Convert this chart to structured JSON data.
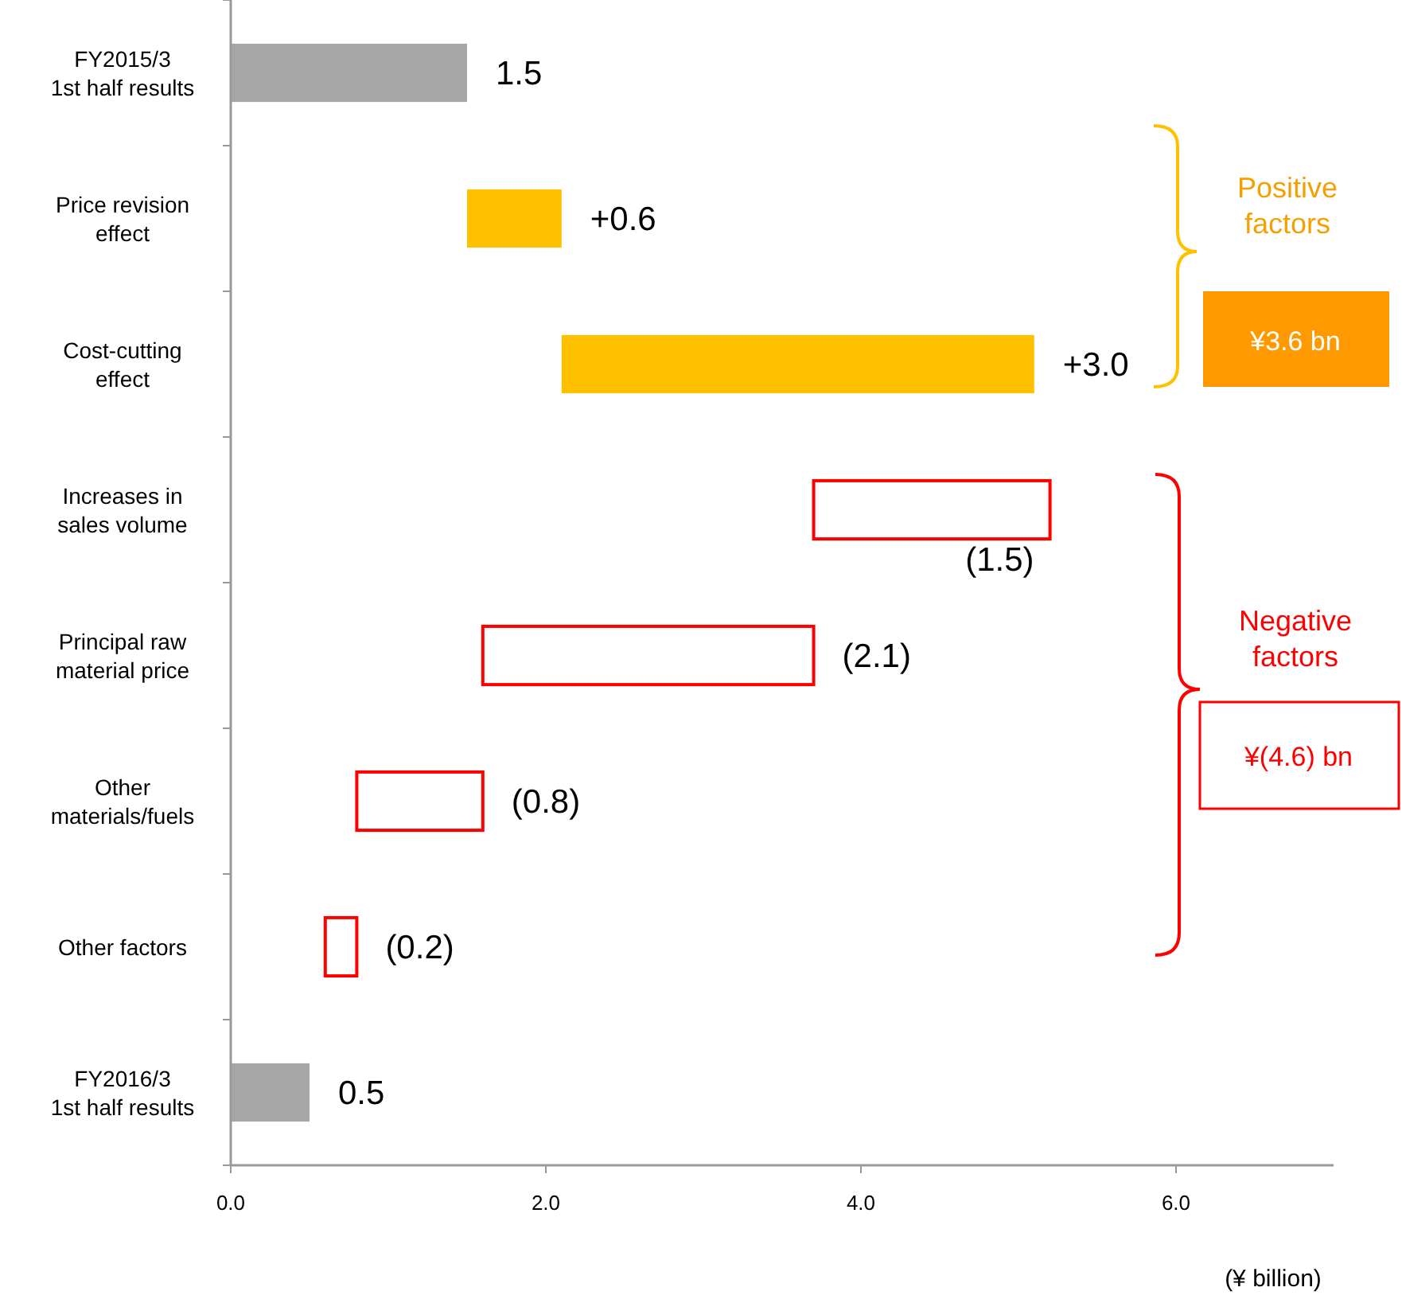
{
  "chart_data": {
    "type": "bar",
    "orientation": "horizontal",
    "categories": [
      "FY2015/3\n1st half results",
      "Price revision\neffect",
      "Cost-cutting\neffect",
      "Increases in\nsales volume",
      "Principal raw\nmaterial price",
      "Other\nmaterials/fuels",
      "Other factors",
      "FY2016/3\n1st half results"
    ],
    "values": [
      1.5,
      0.6,
      3.0,
      -1.5,
      -2.1,
      -0.8,
      -0.2,
      0.5
    ],
    "base": [
      0,
      1.5,
      2.1,
      5.2,
      3.7,
      1.6,
      0.8,
      0
    ],
    "colors": [
      "#a6a6a6",
      "#ffc000",
      "#ffc000",
      "#ff0000",
      "#ff0000",
      "#ff0000",
      "#ff0000",
      "#a6a6a6"
    ],
    "value_labels": [
      "1.5",
      "+0.6",
      "+3.0",
      "(1.5)",
      "(2.1)",
      "(0.8)",
      "(0.2)",
      "0.5"
    ],
    "xlim": [
      0,
      7
    ],
    "xticks": [
      {
        "value": 0,
        "label": "0.0"
      },
      {
        "value": 2,
        "label": "2.0"
      },
      {
        "value": 4,
        "label": "4.0"
      },
      {
        "value": 6,
        "label": "6.0"
      }
    ],
    "xlabel": "(¥ billion)",
    "annotations": [
      "Positive factors",
      "¥3.6 bn",
      "Negative factors",
      "¥(4.6) bn"
    ],
    "grid": false
  }
}
